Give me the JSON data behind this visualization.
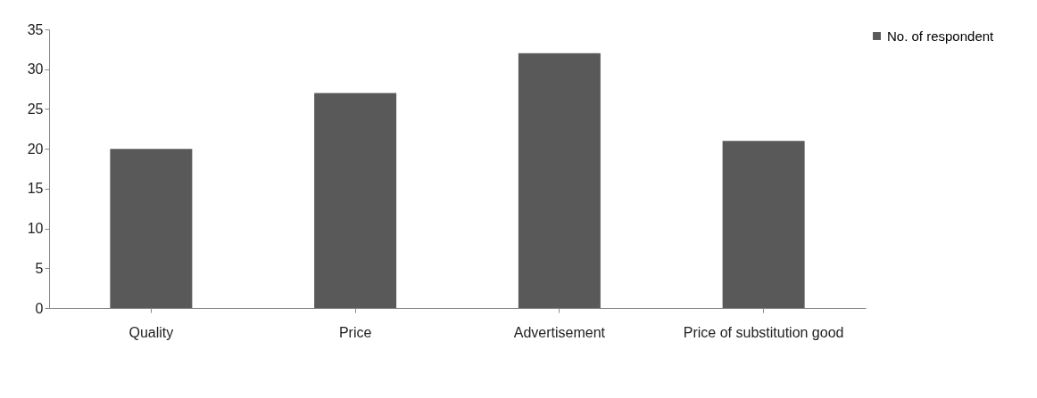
{
  "chart_data": {
    "type": "bar",
    "categories": [
      "Quality",
      "Price",
      "Advertisement",
      "Price of substitution good"
    ],
    "series": [
      {
        "name": "No. of respondent",
        "color": "#595959",
        "values": [
          20,
          27,
          32,
          21
        ]
      }
    ],
    "ylim": [
      0,
      35
    ],
    "yticks": [
      0,
      5,
      10,
      15,
      20,
      25,
      30,
      35
    ],
    "grid": false,
    "legend": "top right"
  }
}
